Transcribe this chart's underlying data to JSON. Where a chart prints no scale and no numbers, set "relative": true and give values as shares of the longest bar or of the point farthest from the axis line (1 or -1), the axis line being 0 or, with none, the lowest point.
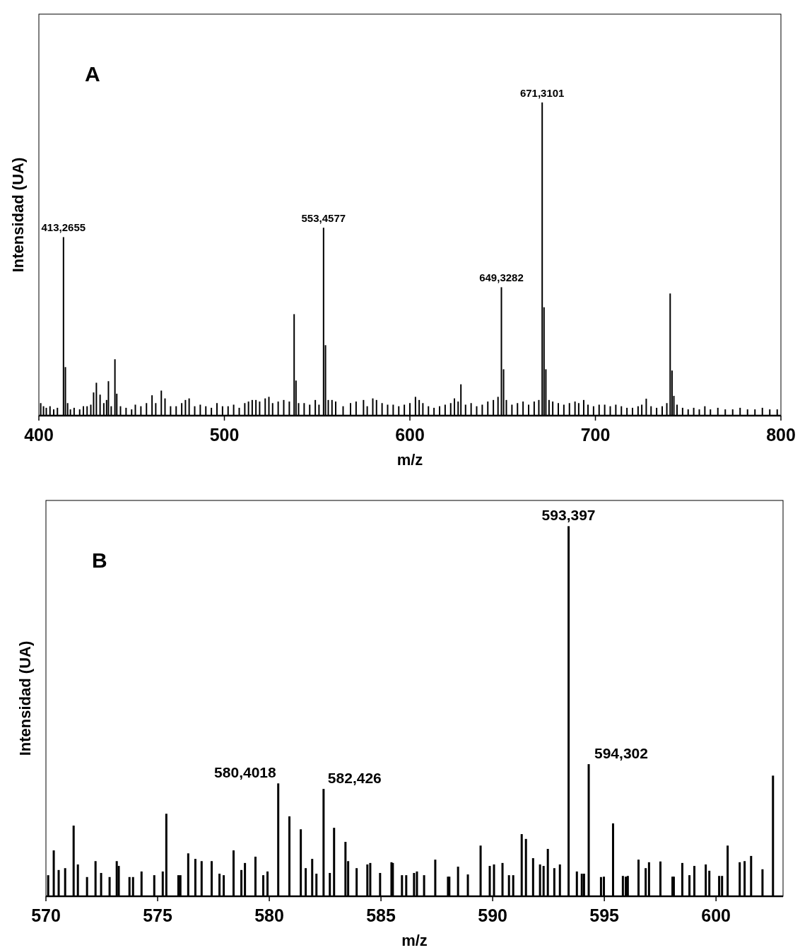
{
  "chart_data": [
    {
      "type": "bar",
      "title": "A",
      "xlabel": "m/z",
      "ylabel": "Intensidad (UA)",
      "relative": true,
      "color": "#000000",
      "xlim": [
        400,
        800
      ],
      "xticks": [
        400,
        500,
        600,
        700,
        800
      ],
      "x": [
        401,
        402.5,
        404,
        406,
        408,
        410,
        413.27,
        414.3,
        415.5,
        417,
        419,
        422,
        424,
        426,
        428,
        429.5,
        431,
        433,
        435,
        436.5,
        437.5,
        439,
        441,
        442,
        444,
        447,
        450,
        452,
        455,
        458,
        461,
        463,
        466,
        468,
        471,
        474,
        477,
        479,
        481,
        484,
        487,
        490,
        493,
        496,
        499,
        502,
        505,
        508,
        511,
        513,
        515,
        517,
        519,
        522,
        524,
        526,
        529,
        532,
        535,
        537.6,
        538.6,
        540,
        543,
        546,
        549,
        551,
        553.46,
        554.5,
        556,
        558,
        560,
        564,
        568,
        571,
        575,
        577,
        580,
        582,
        585,
        588,
        591,
        594,
        597,
        600,
        603,
        605,
        607,
        610,
        613,
        616,
        619,
        622,
        624,
        626,
        627.5,
        630,
        633,
        636,
        639,
        642,
        645,
        647.5,
        649.33,
        650.5,
        652,
        655,
        658,
        661,
        664,
        667,
        669.5,
        671.31,
        672.3,
        673.3,
        675,
        677,
        680,
        683,
        686,
        689,
        691,
        693.7,
        696,
        699,
        702,
        705,
        708,
        711,
        714,
        717,
        720,
        723,
        725,
        727.4,
        730,
        733,
        736,
        738.5,
        740.3,
        741.3,
        742.3,
        744,
        747,
        750,
        753,
        756,
        759,
        762,
        766,
        770,
        774,
        778,
        782,
        786,
        790,
        794,
        798
      ],
      "values": [
        0.04,
        0.03,
        0.025,
        0.03,
        0.02,
        0.025,
        0.57,
        0.155,
        0.04,
        0.02,
        0.025,
        0.02,
        0.03,
        0.03,
        0.035,
        0.074,
        0.105,
        0.067,
        0.04,
        0.05,
        0.11,
        0.03,
        0.18,
        0.07,
        0.03,
        0.025,
        0.02,
        0.035,
        0.03,
        0.04,
        0.065,
        0.04,
        0.08,
        0.055,
        0.03,
        0.03,
        0.04,
        0.05,
        0.055,
        0.03,
        0.035,
        0.03,
        0.025,
        0.04,
        0.03,
        0.03,
        0.035,
        0.025,
        0.04,
        0.045,
        0.05,
        0.05,
        0.045,
        0.055,
        0.06,
        0.04,
        0.045,
        0.05,
        0.045,
        0.324,
        0.112,
        0.04,
        0.04,
        0.035,
        0.05,
        0.035,
        0.6,
        0.225,
        0.05,
        0.05,
        0.045,
        0.03,
        0.04,
        0.045,
        0.05,
        0.03,
        0.055,
        0.05,
        0.04,
        0.035,
        0.035,
        0.03,
        0.035,
        0.04,
        0.06,
        0.05,
        0.04,
        0.03,
        0.025,
        0.03,
        0.035,
        0.04,
        0.055,
        0.045,
        0.1,
        0.035,
        0.04,
        0.03,
        0.035,
        0.045,
        0.05,
        0.06,
        0.41,
        0.148,
        0.05,
        0.035,
        0.04,
        0.045,
        0.035,
        0.045,
        0.05,
        1,
        0.346,
        0.148,
        0.05,
        0.045,
        0.04,
        0.035,
        0.04,
        0.045,
        0.04,
        0.05,
        0.035,
        0.03,
        0.035,
        0.035,
        0.03,
        0.035,
        0.03,
        0.025,
        0.025,
        0.03,
        0.035,
        0.054,
        0.03,
        0.025,
        0.03,
        0.04,
        0.39,
        0.144,
        0.063,
        0.035,
        0.025,
        0.02,
        0.025,
        0.02,
        0.03,
        0.02,
        0.025,
        0.02,
        0.02,
        0.025,
        0.02,
        0.02,
        0.025,
        0.02,
        0.02
      ],
      "annotations": [
        {
          "text": "413,2655",
          "x": 413.27,
          "y": 0.57
        },
        {
          "text": "553,4577",
          "x": 553.46,
          "y": 0.6
        },
        {
          "text": "649,3282",
          "x": 649.33,
          "y": 0.41
        },
        {
          "text": "671,3101",
          "x": 671.31,
          "y": 1
        }
      ]
    },
    {
      "type": "bar",
      "title": "B",
      "xlabel": "m/z",
      "ylabel": "Intensidad (UA)",
      "relative": true,
      "color": "#000000",
      "xlim": [
        570,
        603
      ],
      "xticks": [
        570,
        575,
        580,
        585,
        590,
        595,
        600
      ],
      "x": [
        570.1,
        570.35,
        570.57,
        570.86,
        571.24,
        571.43,
        571.84,
        572.22,
        572.47,
        572.85,
        573.17,
        573.26,
        573.74,
        573.9,
        574.28,
        574.85,
        575.23,
        575.39,
        575.93,
        576.02,
        576.37,
        576.69,
        576.97,
        577.42,
        577.77,
        577.96,
        578.4,
        578.75,
        578.91,
        579.38,
        579.73,
        579.92,
        580.4,
        580.9,
        581.41,
        581.63,
        581.92,
        582.11,
        582.43,
        582.71,
        582.9,
        583.41,
        583.53,
        583.91,
        584.39,
        584.52,
        584.96,
        585.47,
        585.53,
        585.94,
        586.13,
        586.48,
        586.61,
        586.93,
        587.43,
        588,
        588.06,
        588.45,
        588.89,
        589.46,
        589.87,
        590.06,
        590.44,
        590.73,
        590.92,
        591.3,
        591.49,
        591.81,
        592.12,
        592.28,
        592.47,
        592.76,
        593.01,
        593.4,
        593.77,
        593.99,
        594.09,
        594.3,
        594.85,
        594.98,
        595.39,
        595.83,
        595.96,
        596.05,
        596.53,
        596.85,
        597,
        597.51,
        598.05,
        598.11,
        598.49,
        598.81,
        599.03,
        599.54,
        599.7,
        600.14,
        600.27,
        600.52,
        601.06,
        601.28,
        601.57,
        602.08,
        602.55
      ],
      "values": [
        0.057,
        0.124,
        0.071,
        0.076,
        0.191,
        0.086,
        0.052,
        0.095,
        0.063,
        0.052,
        0.095,
        0.082,
        0.052,
        0.052,
        0.067,
        0.057,
        0.067,
        0.223,
        0.057,
        0.057,
        0.116,
        0.101,
        0.095,
        0.095,
        0.061,
        0.057,
        0.124,
        0.071,
        0.09,
        0.107,
        0.057,
        0.067,
        0.305,
        0.216,
        0.181,
        0.076,
        0.101,
        0.061,
        0.29,
        0.063,
        0.185,
        0.147,
        0.095,
        0.076,
        0.086,
        0.09,
        0.063,
        0.092,
        0.09,
        0.057,
        0.057,
        0.063,
        0.067,
        0.057,
        0.099,
        0.053,
        0.053,
        0.08,
        0.059,
        0.137,
        0.082,
        0.086,
        0.09,
        0.057,
        0.057,
        0.168,
        0.155,
        0.103,
        0.086,
        0.082,
        0.128,
        0.076,
        0.086,
        1,
        0.067,
        0.061,
        0.061,
        0.357,
        0.052,
        0.053,
        0.197,
        0.055,
        0.053,
        0.055,
        0.099,
        0.076,
        0.092,
        0.094,
        0.053,
        0.053,
        0.09,
        0.057,
        0.082,
        0.086,
        0.069,
        0.055,
        0.055,
        0.137,
        0.092,
        0.095,
        0.109,
        0.073,
        0.326
      ],
      "annotations": [
        {
          "text": "580,4018",
          "x": 580.4,
          "y": 0.305
        },
        {
          "text": "582,426",
          "x": 582.43,
          "y": 0.29
        },
        {
          "text": "593,397",
          "x": 593.4,
          "y": 1
        },
        {
          "text": "594,302",
          "x": 594.3,
          "y": 0.357
        }
      ]
    }
  ]
}
